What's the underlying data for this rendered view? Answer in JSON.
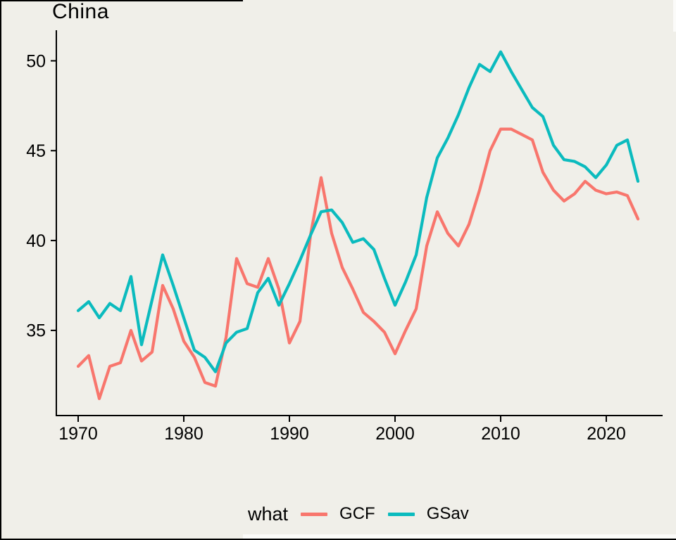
{
  "title": "China",
  "legend": {
    "title": "what",
    "items": [
      {
        "label": "GCF",
        "color": "#F8766D"
      },
      {
        "label": "GSav",
        "color": "#0BBBBE"
      }
    ]
  },
  "chart_data": {
    "type": "line",
    "title": "China",
    "xlabel": "",
    "ylabel": "",
    "background": "#F0EFE9",
    "axis_color": "#000000",
    "grid": false,
    "legend_position": "bottom",
    "legend_title": "what",
    "x_ticks": [
      1970,
      1980,
      1990,
      2000,
      2010,
      2020
    ],
    "y_ticks": [
      35,
      40,
      45,
      50
    ],
    "xlim": [
      1968,
      2025.5
    ],
    "ylim": [
      31,
      50.8
    ],
    "x": [
      1970,
      1971,
      1972,
      1973,
      1974,
      1975,
      1976,
      1977,
      1978,
      1979,
      1980,
      1981,
      1982,
      1983,
      1984,
      1985,
      1986,
      1987,
      1988,
      1989,
      1990,
      1991,
      1992,
      1993,
      1994,
      1995,
      1996,
      1997,
      1998,
      1999,
      2000,
      2001,
      2002,
      2003,
      2004,
      2005,
      2006,
      2007,
      2008,
      2009,
      2010,
      2011,
      2012,
      2013,
      2014,
      2015,
      2016,
      2017,
      2018,
      2019,
      2020,
      2021,
      2022,
      2023
    ],
    "series": [
      {
        "name": "GCF",
        "color": "#F8766D",
        "values": [
          33.0,
          33.6,
          31.2,
          33.0,
          33.2,
          35.0,
          33.3,
          33.8,
          37.5,
          36.2,
          34.4,
          33.5,
          32.1,
          31.9,
          34.6,
          39.0,
          37.6,
          37.4,
          39.0,
          37.3,
          34.3,
          35.5,
          40.3,
          43.5,
          40.4,
          38.5,
          37.3,
          36.0,
          35.5,
          34.9,
          33.7,
          35.0,
          36.2,
          39.7,
          41.6,
          40.4,
          39.7,
          40.9,
          42.8,
          45.0,
          46.2,
          46.2,
          45.9,
          45.6,
          43.8,
          42.8,
          42.2,
          42.6,
          43.3,
          42.8,
          42.6,
          42.7,
          42.5,
          41.2
        ]
      },
      {
        "name": "GSav",
        "color": "#0BBBBE",
        "values": [
          36.1,
          36.6,
          35.7,
          36.5,
          36.1,
          38.0,
          34.2,
          36.7,
          39.2,
          37.5,
          35.7,
          33.9,
          33.5,
          32.7,
          34.3,
          34.9,
          35.1,
          37.1,
          37.9,
          36.4,
          37.6,
          38.9,
          40.3,
          41.6,
          41.7,
          41.0,
          39.9,
          40.1,
          39.5,
          37.9,
          36.4,
          37.7,
          39.2,
          42.4,
          44.6,
          45.7,
          47.0,
          48.5,
          49.8,
          49.4,
          50.5,
          49.4,
          48.4,
          47.4,
          46.9,
          45.3,
          44.5,
          44.4,
          44.1,
          43.5,
          44.2,
          45.3,
          45.6,
          43.3
        ]
      }
    ]
  }
}
